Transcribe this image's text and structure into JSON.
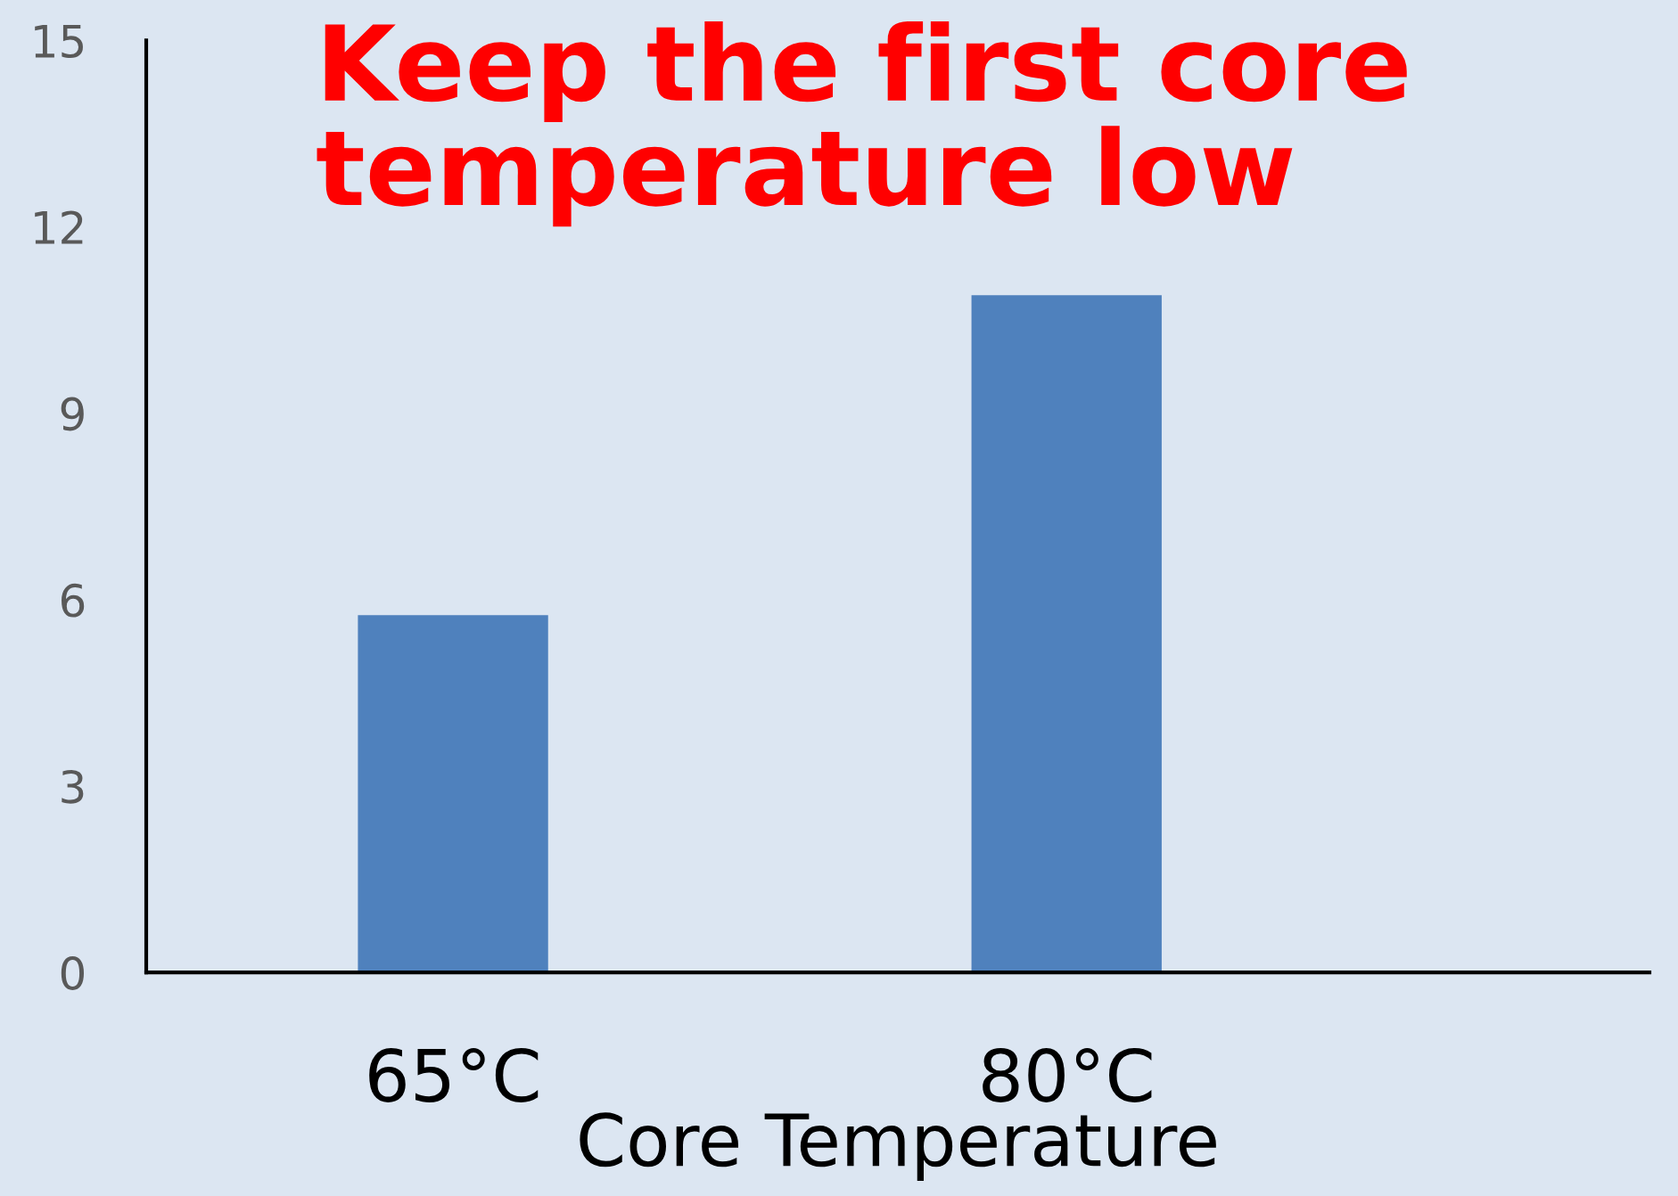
{
  "chart_data": {
    "type": "bar",
    "title": "Keep the first core temperature low",
    "xlabel": "Core Temperature",
    "categories": [
      "65°C",
      "80°C"
    ],
    "values": [
      5.75,
      10.9
    ],
    "color": "#4f81bd",
    "ylim": [
      0,
      15
    ],
    "yticks": [
      0,
      3,
      6,
      9,
      12,
      15
    ],
    "grid": false,
    "legend": false
  }
}
